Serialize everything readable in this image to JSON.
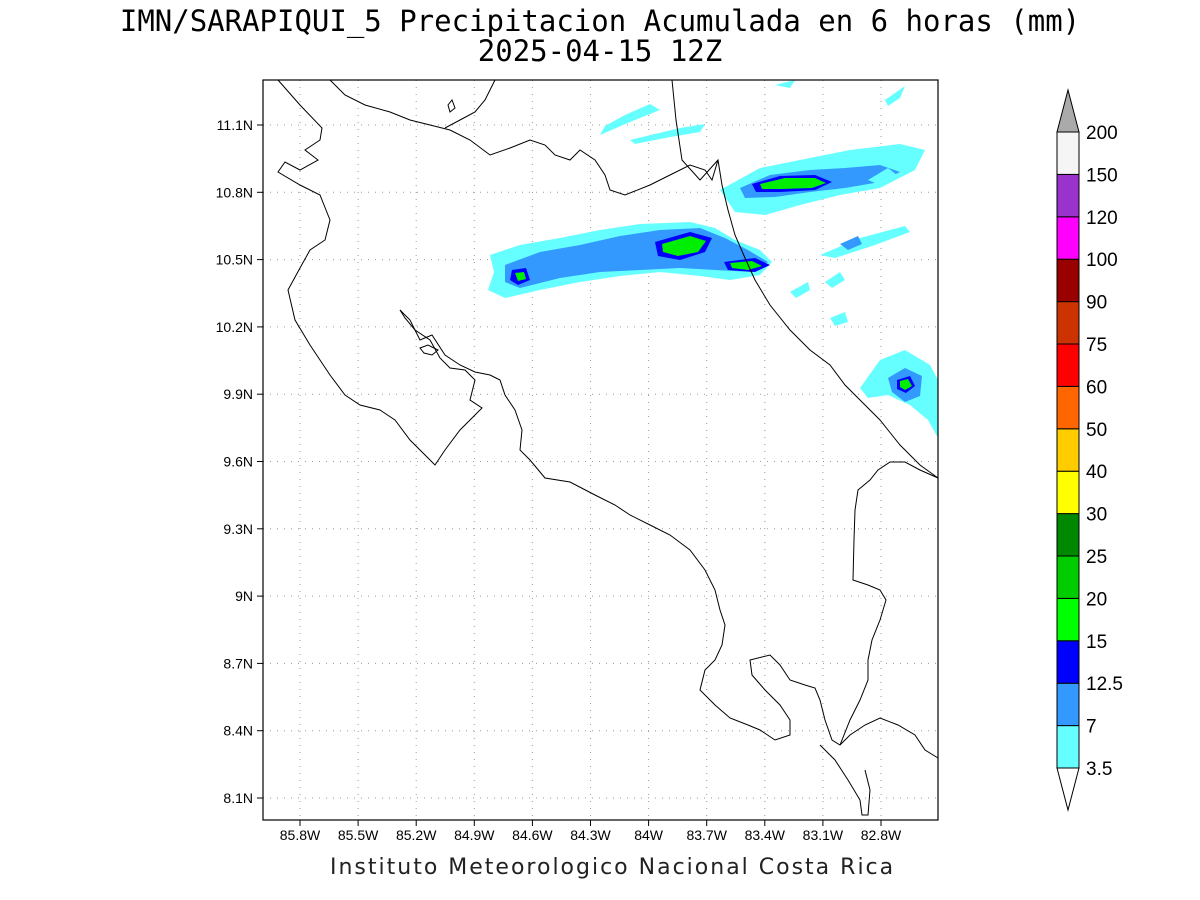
{
  "title": {
    "line1": "IMN/SARAPIQUI_5 Precipitacion Acumulada en 6 horas (mm)",
    "line2": "2025-04-15 12Z"
  },
  "footer": "Instituto Meteorologico Nacional Costa Rica",
  "map": {
    "lat_ticks": [
      "11.1N",
      "10.8N",
      "10.5N",
      "10.2N",
      "9.9N",
      "9.6N",
      "9.3N",
      "9N",
      "8.7N",
      "8.4N",
      "8.1N"
    ],
    "lon_ticks": [
      "85.8W",
      "85.5W",
      "85.2W",
      "84.9W",
      "84.6W",
      "84.3W",
      "84W",
      "83.7W",
      "83.4W",
      "83.1W",
      "82.8W"
    ],
    "grid": true
  },
  "colorbar": {
    "labels": [
      "3.5",
      "7",
      "12.5",
      "15",
      "20",
      "25",
      "30",
      "40",
      "50",
      "60",
      "75",
      "90",
      "100",
      "120",
      "150",
      "200"
    ],
    "colors": [
      "#66ffff",
      "#3399ff",
      "#0000ff",
      "#00ff00",
      "#00cc00",
      "#008800",
      "#ffff00",
      "#ffcc00",
      "#ff6600",
      "#ff0000",
      "#cc3300",
      "#990000",
      "#ff00ff",
      "#9933cc",
      "#f5f5f5",
      "#aaaaaa"
    ]
  }
}
